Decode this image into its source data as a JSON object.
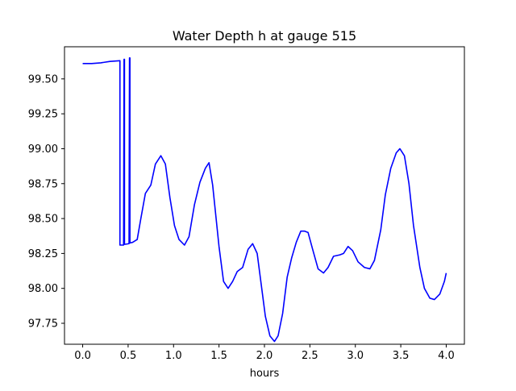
{
  "chart_data": {
    "type": "line",
    "title": "Water Depth h at gauge 515",
    "xlabel": "hours",
    "ylabel": "",
    "xlim": [
      -0.2,
      4.2
    ],
    "ylim": [
      97.6,
      99.73
    ],
    "x_ticks": [
      0.0,
      0.5,
      1.0,
      1.5,
      2.0,
      2.5,
      3.0,
      3.5,
      4.0
    ],
    "x_tick_labels": [
      "0.0",
      "0.5",
      "1.0",
      "1.5",
      "2.0",
      "2.5",
      "3.0",
      "3.5",
      "4.0"
    ],
    "y_ticks": [
      97.75,
      98.0,
      98.25,
      98.5,
      98.75,
      99.0,
      99.25,
      99.5
    ],
    "y_tick_labels": [
      "97.75",
      "98.00",
      "98.25",
      "98.50",
      "98.75",
      "99.00",
      "99.25",
      "99.50"
    ],
    "grid": false,
    "legend": "none",
    "series": [
      {
        "color": "#0000ff",
        "points": [
          [
            0.0,
            99.61
          ],
          [
            0.1,
            99.61
          ],
          [
            0.2,
            99.615
          ],
          [
            0.3,
            99.625
          ],
          [
            0.41,
            99.63
          ],
          [
            0.41,
            98.31
          ],
          [
            0.45,
            98.31
          ],
          [
            0.455,
            99.64
          ],
          [
            0.46,
            99.64
          ],
          [
            0.46,
            98.315
          ],
          [
            0.51,
            98.32
          ],
          [
            0.515,
            99.65
          ],
          [
            0.52,
            99.65
          ],
          [
            0.52,
            98.325
          ],
          [
            0.55,
            98.33
          ],
          [
            0.6,
            98.35
          ],
          [
            0.64,
            98.5
          ],
          [
            0.69,
            98.68
          ],
          [
            0.75,
            98.74
          ],
          [
            0.8,
            98.89
          ],
          [
            0.86,
            98.95
          ],
          [
            0.91,
            98.89
          ],
          [
            0.96,
            98.65
          ],
          [
            1.01,
            98.45
          ],
          [
            1.06,
            98.35
          ],
          [
            1.12,
            98.31
          ],
          [
            1.17,
            98.37
          ],
          [
            1.23,
            98.6
          ],
          [
            1.29,
            98.76
          ],
          [
            1.35,
            98.86
          ],
          [
            1.39,
            98.9
          ],
          [
            1.43,
            98.74
          ],
          [
            1.5,
            98.3
          ],
          [
            1.55,
            98.05
          ],
          [
            1.6,
            98.0
          ],
          [
            1.65,
            98.05
          ],
          [
            1.7,
            98.12
          ],
          [
            1.76,
            98.15
          ],
          [
            1.82,
            98.28
          ],
          [
            1.87,
            98.32
          ],
          [
            1.92,
            98.25
          ],
          [
            1.96,
            98.05
          ],
          [
            2.01,
            97.8
          ],
          [
            2.06,
            97.66
          ],
          [
            2.11,
            97.62
          ],
          [
            2.15,
            97.66
          ],
          [
            2.2,
            97.82
          ],
          [
            2.25,
            98.08
          ],
          [
            2.3,
            98.22
          ],
          [
            2.35,
            98.33
          ],
          [
            2.4,
            98.41
          ],
          [
            2.44,
            98.41
          ],
          [
            2.48,
            98.4
          ],
          [
            2.53,
            98.28
          ],
          [
            2.59,
            98.14
          ],
          [
            2.65,
            98.11
          ],
          [
            2.7,
            98.15
          ],
          [
            2.76,
            98.23
          ],
          [
            2.83,
            98.24
          ],
          [
            2.87,
            98.25
          ],
          [
            2.92,
            98.3
          ],
          [
            2.97,
            98.27
          ],
          [
            3.03,
            98.19
          ],
          [
            3.1,
            98.15
          ],
          [
            3.16,
            98.14
          ],
          [
            3.21,
            98.2
          ],
          [
            3.28,
            98.42
          ],
          [
            3.33,
            98.67
          ],
          [
            3.39,
            98.86
          ],
          [
            3.45,
            98.97
          ],
          [
            3.49,
            99.0
          ],
          [
            3.54,
            98.95
          ],
          [
            3.59,
            98.75
          ],
          [
            3.64,
            98.45
          ],
          [
            3.71,
            98.15
          ],
          [
            3.76,
            98.0
          ],
          [
            3.82,
            97.93
          ],
          [
            3.87,
            97.92
          ],
          [
            3.93,
            97.96
          ],
          [
            3.98,
            98.05
          ],
          [
            4.0,
            98.11
          ]
        ]
      }
    ]
  }
}
